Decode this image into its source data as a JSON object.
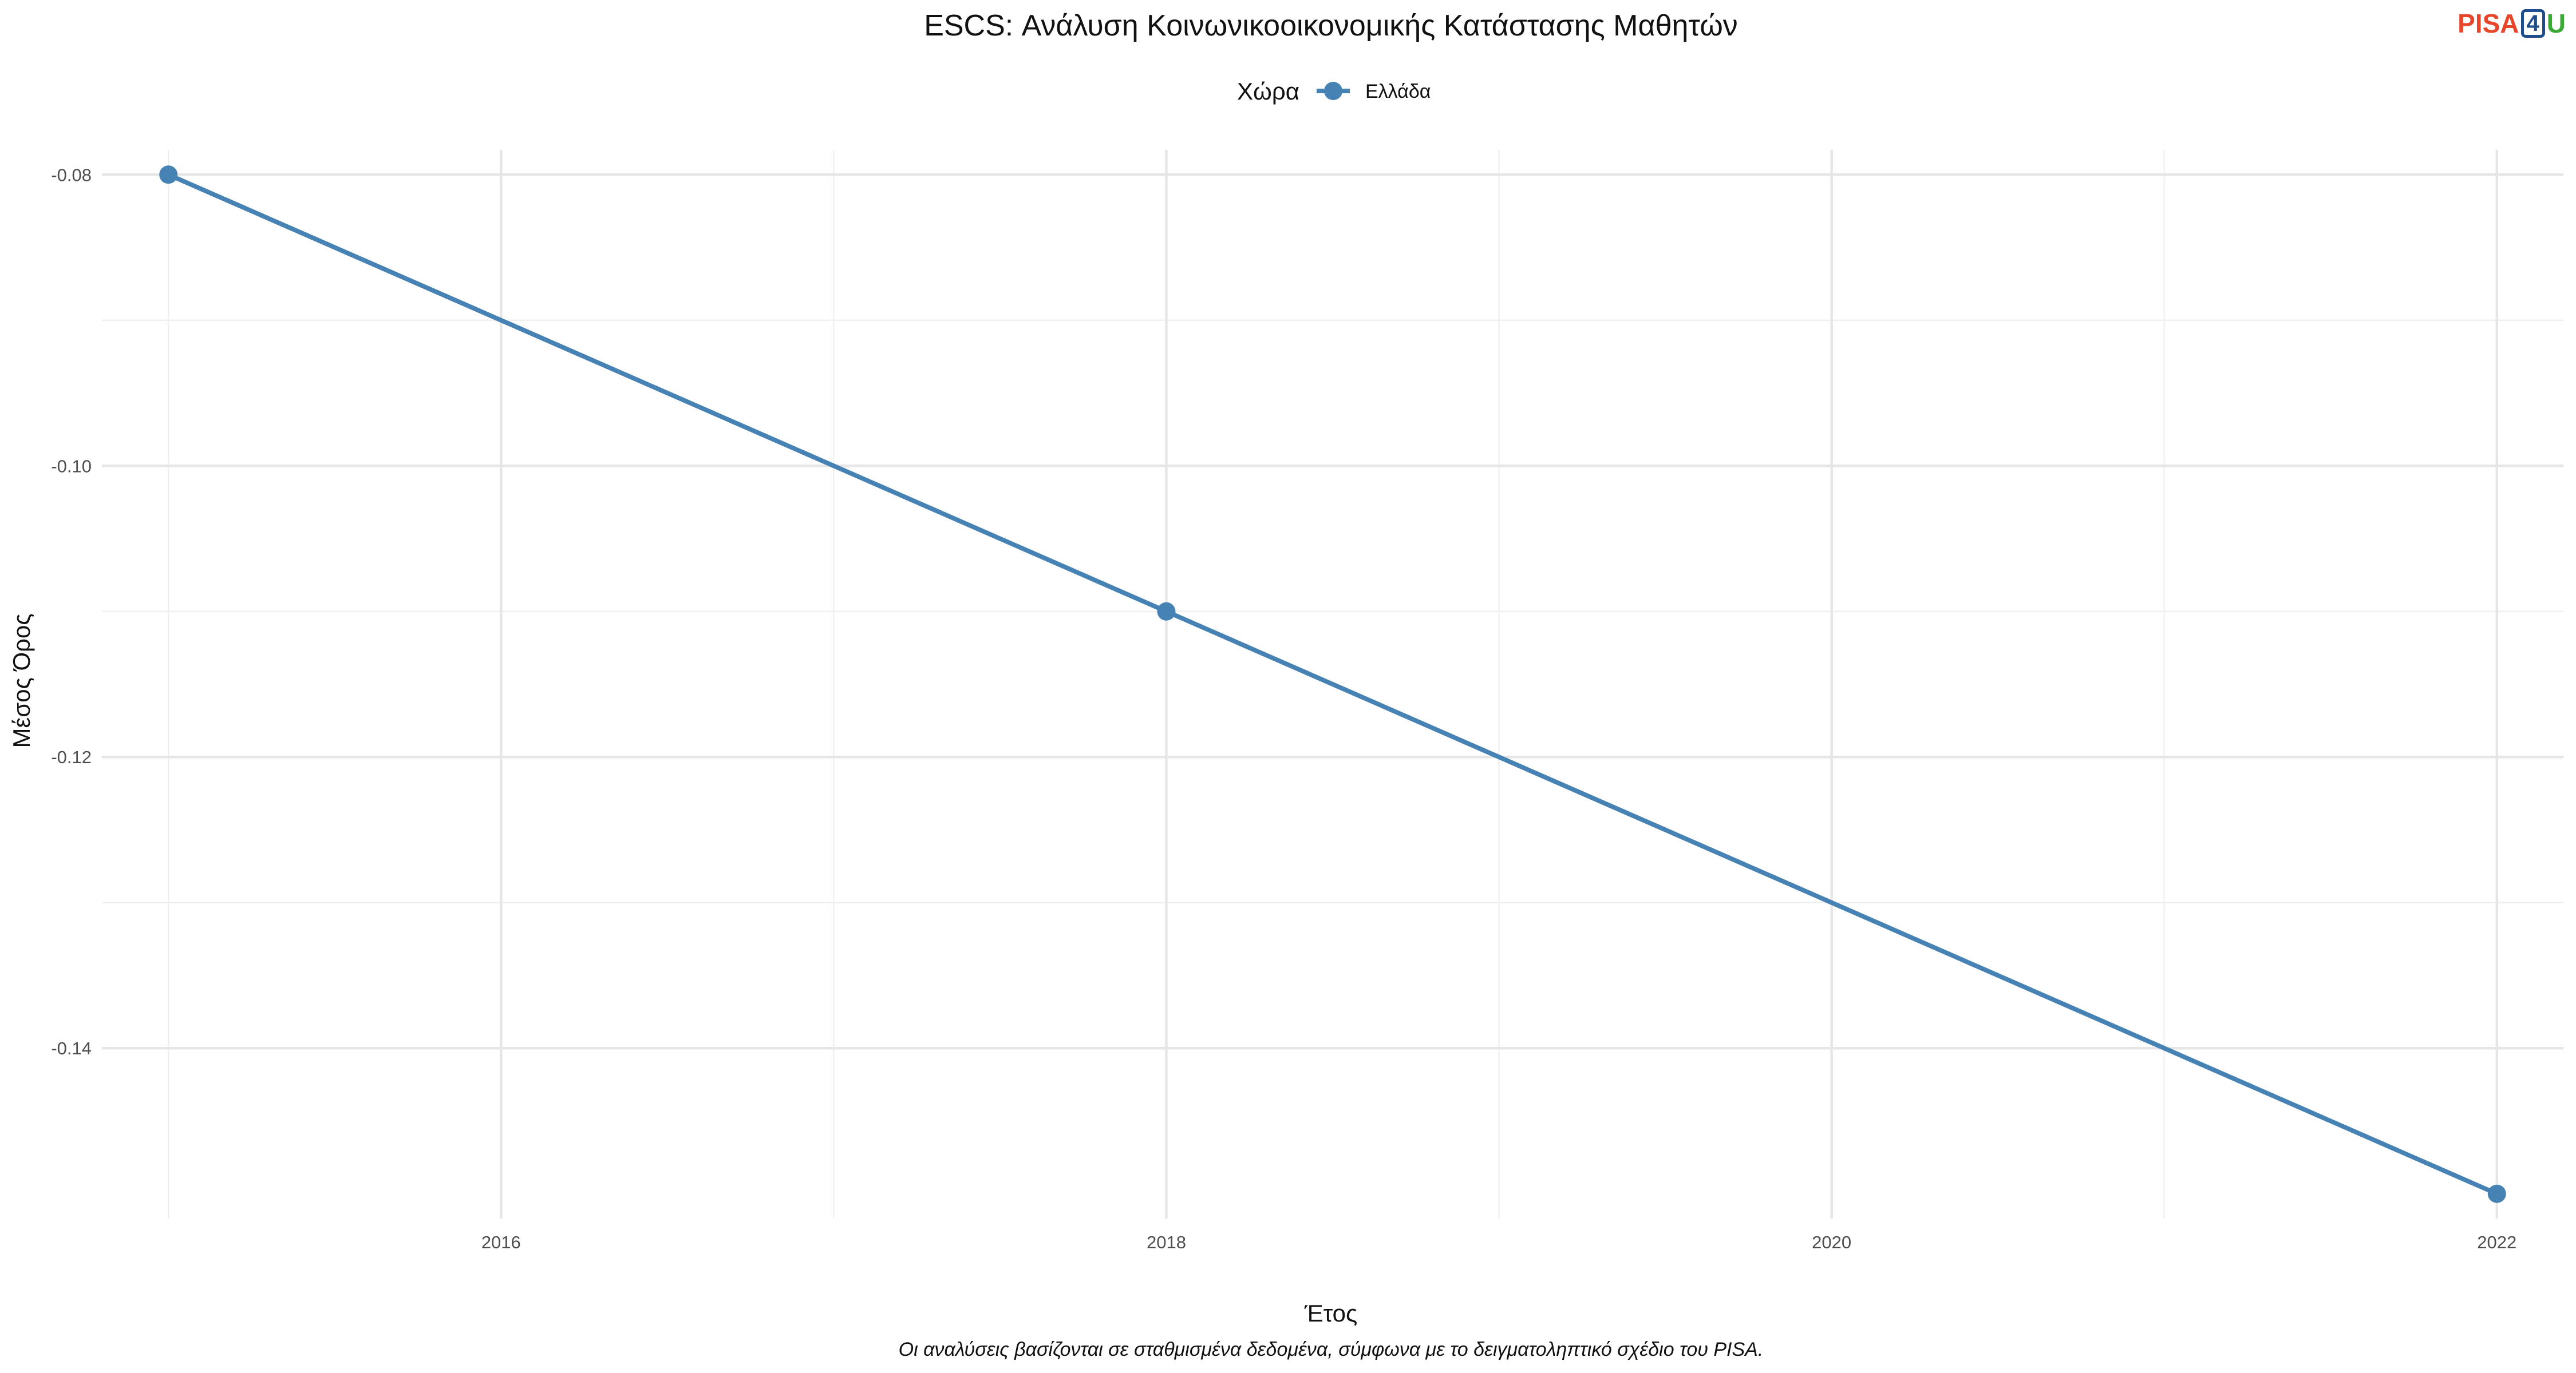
{
  "logo": {
    "part1": "PISA",
    "part2": "4",
    "part3": "U"
  },
  "chart_data": {
    "type": "line",
    "title": "ESCS: Ανάλυση Κοινωνικοοικονομικής Κατάστασης Μαθητών",
    "xlabel": "Έτος",
    "ylabel": "Μέσος Όρος",
    "caption": "Οι αναλύσεις βασίζονται σε σταθμισμένα δεδομένα, σύμφωνα με το δειγματοληπτικό σχέδιο του PISA.",
    "legend": {
      "title": "Χώρα",
      "position": "top"
    },
    "grid": true,
    "xlim": [
      2014.8,
      2022.2
    ],
    "ylim": [
      -0.1517,
      -0.0783
    ],
    "xticks": [
      2016,
      2018,
      2020,
      2022
    ],
    "yticks": [
      -0.08,
      -0.1,
      -0.12,
      -0.14
    ],
    "yticklabels": [
      "-0.08",
      "-0.10",
      "-0.12",
      "-0.14"
    ],
    "series": [
      {
        "name": "Ελλάδα",
        "color": "#4682b4",
        "x": [
          2015,
          2018,
          2022
        ],
        "y": [
          -0.08,
          -0.11,
          -0.15
        ]
      }
    ]
  }
}
